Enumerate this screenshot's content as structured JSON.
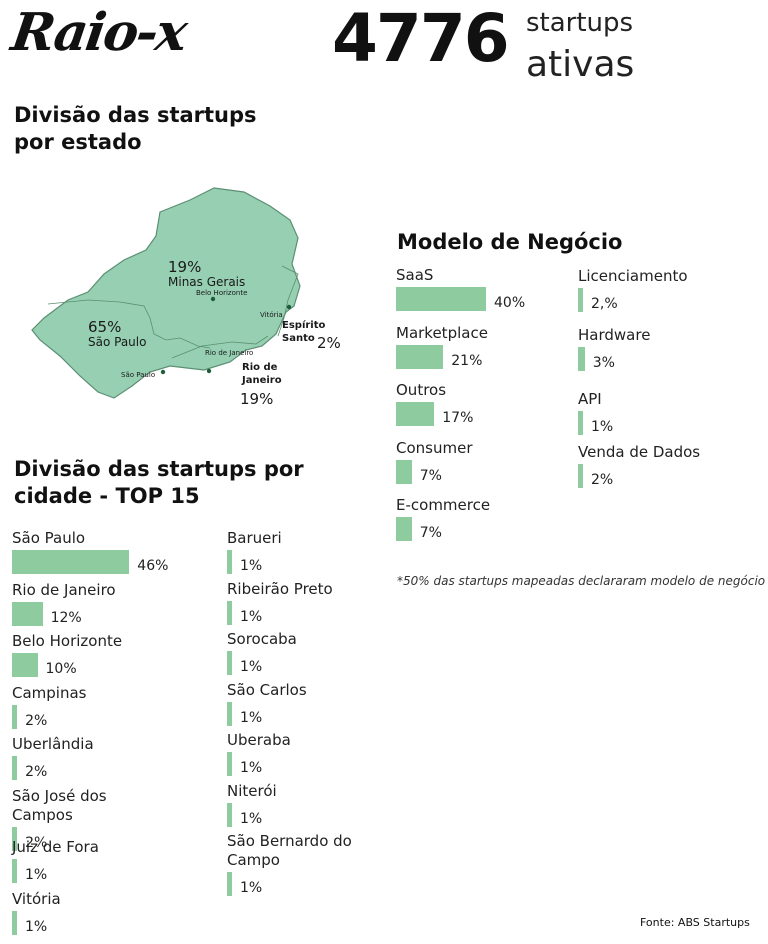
{
  "header": {
    "brand": "Raio-x",
    "total": "4776",
    "total_line1": "startups",
    "total_line2": "ativas"
  },
  "state_section": {
    "title_line1": "Divisão das startups",
    "title_line2": "por estado",
    "states": [
      {
        "pct": "65%",
        "name": "São Paulo"
      },
      {
        "pct": "19%",
        "name": "Minas Gerais"
      },
      {
        "pct": "19%",
        "name_line1": "Rio de",
        "name_line2": "Janeiro"
      },
      {
        "pct": "2%",
        "name_line1": "Espírito",
        "name_line2": "Santo"
      }
    ],
    "cities": [
      "Belo Horizonte",
      "Vitória",
      "Rio de Janeiro",
      "São Paulo"
    ]
  },
  "chart_data": [
    {
      "type": "bar",
      "title": "Modelo de Negócio",
      "categories": [
        "SaaS",
        "Marketplace",
        "Outros",
        "Consumer",
        "E-commerce",
        "Licenciamento",
        "Hardware",
        "API",
        "Venda de Dados"
      ],
      "values": [
        40,
        21,
        17,
        7,
        7,
        2.0,
        3,
        1,
        2
      ],
      "value_labels": [
        "40%",
        "21%",
        "17%",
        "7%",
        "7%",
        "2,%",
        "3%",
        "1%",
        "2%"
      ],
      "note": "*50% das startups mapeadas declararam modelo de negócio",
      "bar_color": "#8ecb9e"
    },
    {
      "type": "bar",
      "title_line1": "Divisão das startups por",
      "title_line2": "cidade - TOP 15",
      "categories": [
        "São Paulo",
        "Rio de Janeiro",
        "Belo Horizonte",
        "Campinas",
        "Uberlândia",
        "São José dos Campos",
        "Juiz de Fora",
        "Vitória",
        "Barueri",
        "Ribeirão Preto",
        "Sorocaba",
        "São Carlos",
        "Uberaba",
        "Niterói",
        "São Bernardo do Campo"
      ],
      "values": [
        46,
        12,
        10,
        2,
        2,
        2,
        1,
        1,
        1,
        1,
        1,
        1,
        1,
        1,
        1
      ],
      "value_labels": [
        "46%",
        "12%",
        "10%",
        "2%",
        "2%",
        "2%",
        "1%",
        "1%",
        "1%",
        "1%",
        "1%",
        "1%",
        "1%",
        "1%",
        "1%"
      ],
      "bar_color": "#8ecb9e"
    }
  ],
  "footer": {
    "source": "Fonte: ABS Startups"
  }
}
